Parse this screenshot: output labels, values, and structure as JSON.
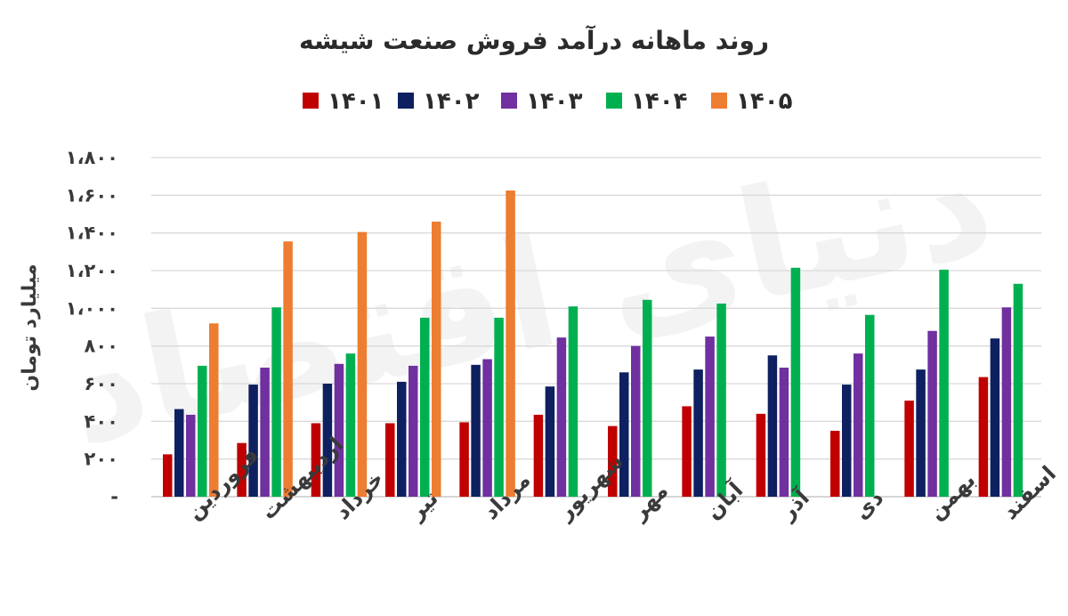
{
  "watermark": "دنیای اقتصاد",
  "chart_data": {
    "type": "bar",
    "title": "روند ماهانه درآمد فروش صنعت شیشه",
    "ylabel": "میلیارد تومان",
    "xlabel": "",
    "ylim": [
      0,
      1800
    ],
    "yticks": [
      0,
      200,
      400,
      600,
      800,
      1000,
      1200,
      1400,
      1600,
      1800
    ],
    "ytick_labels": [
      "-",
      "۲۰۰",
      "۴۰۰",
      "۶۰۰",
      "۸۰۰",
      "۱،۰۰۰",
      "۱،۲۰۰",
      "۱،۴۰۰",
      "۱،۶۰۰",
      "۱،۸۰۰"
    ],
    "grid": true,
    "legend_position": "top-center",
    "categories": [
      "فروردین",
      "اردیبهشت",
      "خرداد",
      "تیر",
      "مرداد",
      "شهریور",
      "مهر",
      "آبان",
      "آذر",
      "دی",
      "بهمن",
      "اسفند"
    ],
    "series": [
      {
        "name": "۱۴۰۱",
        "color": "#c00000",
        "values": [
          225,
          285,
          390,
          390,
          395,
          435,
          375,
          480,
          440,
          350,
          510,
          635
        ]
      },
      {
        "name": "۱۴۰۲",
        "color": "#0e2060",
        "values": [
          465,
          595,
          600,
          610,
          700,
          585,
          660,
          675,
          750,
          595,
          675,
          840
        ]
      },
      {
        "name": "۱۴۰۳",
        "color": "#7030a0",
        "values": [
          435,
          685,
          705,
          695,
          730,
          845,
          800,
          850,
          685,
          760,
          880,
          1005
        ]
      },
      {
        "name": "۱۴۰۴",
        "color": "#00b050",
        "values": [
          695,
          1005,
          760,
          950,
          950,
          1010,
          1045,
          1025,
          1215,
          965,
          1205,
          1130
        ]
      },
      {
        "name": "۱۴۰۵",
        "color": "#ed7d31",
        "values": [
          920,
          1355,
          1405,
          1460,
          1625,
          null,
          null,
          null,
          null,
          null,
          null,
          null
        ]
      }
    ]
  }
}
